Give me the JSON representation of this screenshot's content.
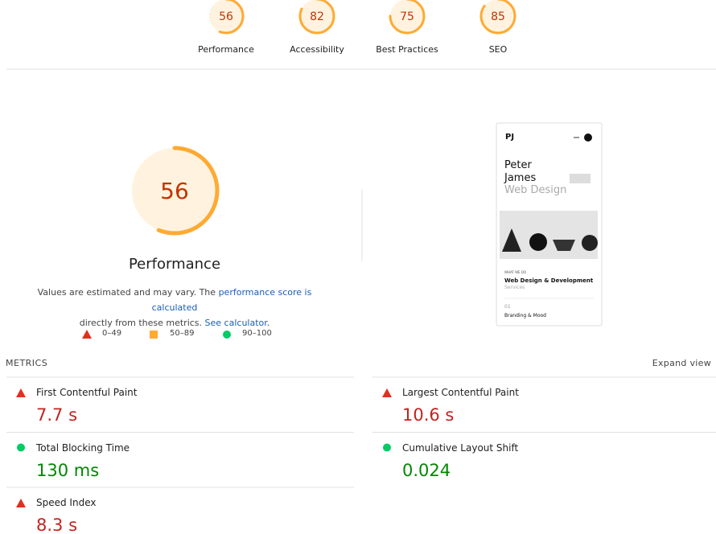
{
  "categories": [
    {
      "label": "Performance",
      "score": 56
    },
    {
      "label": "Accessibility",
      "score": 82
    },
    {
      "label": "Best Practices",
      "score": 75
    },
    {
      "label": "SEO",
      "score": 85
    }
  ],
  "performance_note": {
    "text1": "Values are estimated and may vary. The",
    "link1": "performance score is calculated",
    "text2": "directly from these metrics.",
    "link2": "See calculator",
    "text3": "."
  },
  "legend": [
    "0–49",
    "50–89",
    "90–100"
  ],
  "screenshot": {
    "logo": "PJ",
    "line1": "Peter",
    "line2": "James",
    "line3": "Web Design",
    "kicker": "WHAT WE DO",
    "service": "Web Design & Development",
    "service_sub": "Services",
    "number": "01",
    "item": "Branding & Mood"
  },
  "metrics": {
    "heading": "METRICS",
    "expand": "Expand view",
    "items": [
      {
        "name": "First Contentful Paint",
        "value": "7.7 s",
        "rating": "fail"
      },
      {
        "name": "Largest Contentful Paint",
        "value": "10.6 s",
        "rating": "fail"
      },
      {
        "name": "Total Blocking Time",
        "value": "130 ms",
        "rating": "pass"
      },
      {
        "name": "Cumulative Layout Shift",
        "value": "0.024",
        "rating": "pass"
      },
      {
        "name": "Speed Index",
        "value": "8.3 s",
        "rating": "fail"
      }
    ]
  }
}
